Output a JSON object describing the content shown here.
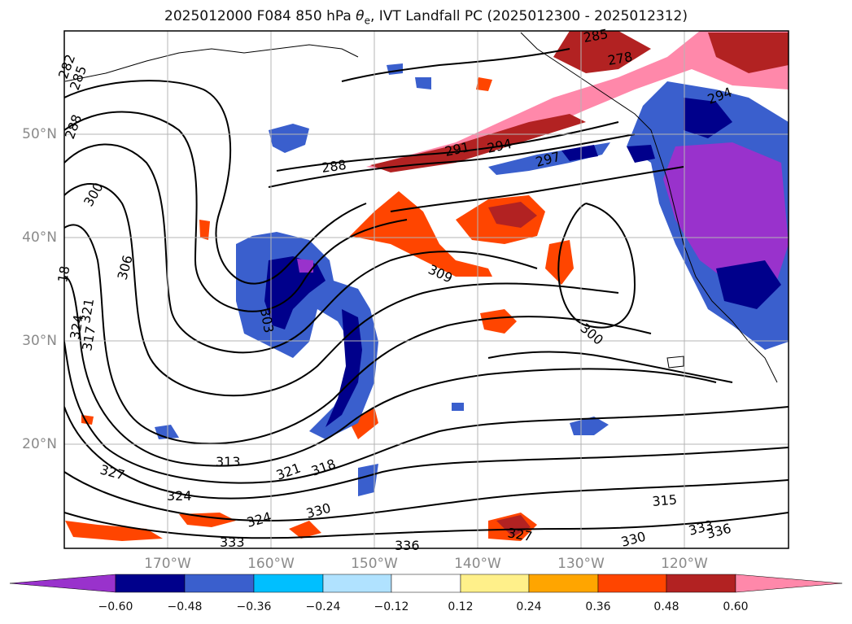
{
  "title": {
    "prefix": "2025012000 F084 850 hPa ",
    "var_symbol": "θ",
    "var_sub": "e",
    "suffix": ", IVT Landfall PC (2025012300 - 2025012312)"
  },
  "axes": {
    "lat_labels": [
      "50°N",
      "40°N",
      "30°N",
      "20°N"
    ],
    "lon_labels": [
      "170°W",
      "160°W",
      "150°W",
      "140°W",
      "130°W",
      "120°W"
    ]
  },
  "contour_labels": [
    "282",
    "285",
    "288",
    "300",
    "306",
    "18",
    "324",
    "321",
    "317",
    "327",
    "313",
    "324",
    "324",
    "333",
    "330",
    "321",
    "318",
    "303",
    "309",
    "288",
    "291",
    "294",
    "297",
    "285",
    "278",
    "294",
    "300",
    "315",
    "336",
    "330",
    "333",
    "336",
    "327"
  ],
  "colorbar": {
    "ticks": [
      "−0.60",
      "−0.48",
      "−0.36",
      "−0.24",
      "−0.12",
      "0.12",
      "0.24",
      "0.36",
      "0.48",
      "0.60"
    ],
    "colors": [
      "#9932cc",
      "#00008b",
      "#3a5fcd",
      "#00bfff",
      "#b0e2ff",
      "#ffffff",
      "#fff08a",
      "#ffa500",
      "#ff4500",
      "#b22222",
      "#ff88aa"
    ]
  }
}
